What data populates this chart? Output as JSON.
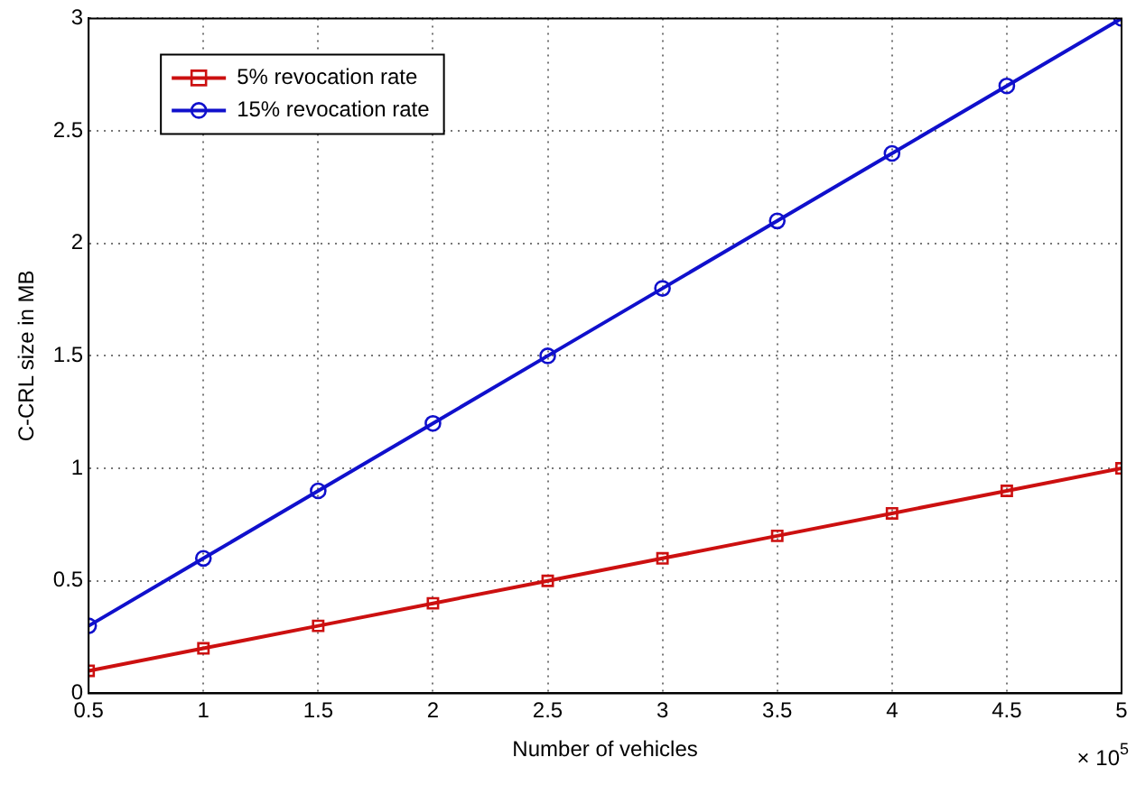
{
  "chart_data": {
    "type": "line",
    "xlabel": "Number of vehicles",
    "ylabel": "C-CRL size in MB",
    "x": [
      0.5,
      1,
      1.5,
      2,
      2.5,
      3,
      3.5,
      4,
      4.5,
      5
    ],
    "series": [
      {
        "name": "5% revocation rate",
        "color": "#cc1010",
        "marker": "square",
        "values": [
          0.1,
          0.2,
          0.3,
          0.4,
          0.5,
          0.6,
          0.7,
          0.8,
          0.9,
          1.0
        ]
      },
      {
        "name": "15% revocation rate",
        "color": "#1010cc",
        "marker": "circle",
        "values": [
          0.3,
          0.6,
          0.9,
          1.2,
          1.5,
          1.8,
          2.1,
          2.4,
          2.7,
          3.0
        ]
      }
    ],
    "xlim": [
      0.5,
      5
    ],
    "xticks": [
      0.5,
      1,
      1.5,
      2,
      2.5,
      3,
      3.5,
      4,
      4.5,
      5
    ],
    "ylim": [
      0,
      3
    ],
    "yticks": [
      0,
      0.5,
      1,
      1.5,
      2,
      2.5,
      3
    ],
    "grid": true,
    "legend": "top left",
    "line_style": "solid",
    "annotations": [
      "× 10$^{5}$"
    ]
  }
}
